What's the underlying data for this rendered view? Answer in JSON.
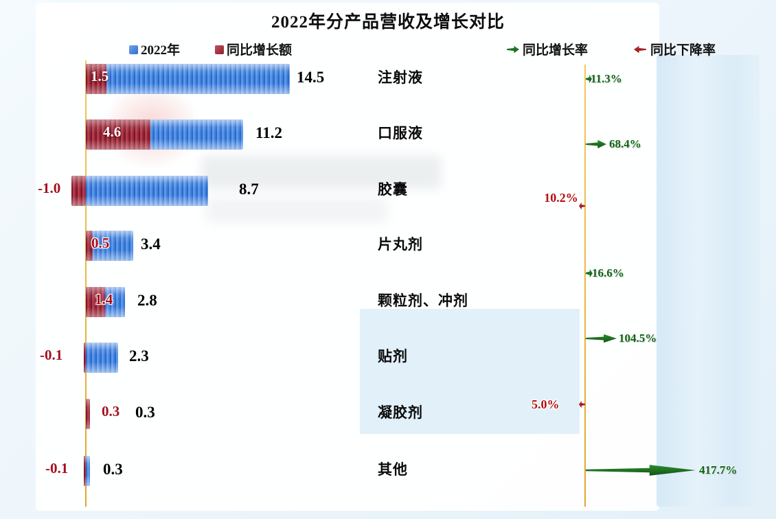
{
  "title": "2022年分产品营收及增长对比",
  "legend": {
    "series_2022": "2022年",
    "series_delta": "同比增长额",
    "rate_up": "同比增长率",
    "rate_down": "同比下降率"
  },
  "colors": {
    "bar_blue": "#3f81dc",
    "bar_red": "#96273a",
    "rate_green_text": "#14661a",
    "rate_red_text": "#b50d0d",
    "axis_line": "#e8b63a"
  },
  "chart_data": {
    "type": "bar",
    "orientation": "horizontal",
    "title": "2022年分产品营收及增长对比",
    "categories": [
      "注射液",
      "口服液",
      "胶囊",
      "片丸剂",
      "颗粒剂、冲剂",
      "贴剂",
      "凝胶剂",
      "其他"
    ],
    "series": [
      {
        "name": "2022年",
        "values": [
          14.5,
          11.2,
          8.7,
          3.4,
          2.8,
          2.3,
          0.3,
          0.3
        ]
      },
      {
        "name": "同比增长额",
        "values": [
          1.5,
          4.6,
          -1.0,
          0.5,
          1.4,
          -0.1,
          0.3,
          -0.1
        ]
      }
    ],
    "value_labels": [
      "14.5",
      "11.2",
      "8.7",
      "3.4",
      "2.8",
      "2.3",
      "0.3",
      "0.3"
    ],
    "delta_labels": [
      "1.5",
      "4.6",
      "-1.0",
      "0.5",
      "1.4",
      "-0.1",
      "0.3",
      "-0.1"
    ],
    "rates": [
      {
        "category": "注射液",
        "label": "11.3%",
        "direction": "up"
      },
      {
        "category": "口服液",
        "label": "68.4%",
        "direction": "up"
      },
      {
        "category": "胶囊",
        "label": "10.2%",
        "direction": "down"
      },
      {
        "category": "片丸剂",
        "label": "16.6%",
        "direction": "up"
      },
      {
        "category": "颗粒剂、冲剂",
        "label": "104.5%",
        "direction": "up"
      },
      {
        "category": "贴剂",
        "label": "5.0%",
        "direction": "down"
      },
      {
        "category": "凝胶剂",
        "label": "417.7%",
        "direction": "up"
      }
    ],
    "xlim": [
      0,
      14.5
    ],
    "grid": false,
    "legend_position": "top"
  }
}
